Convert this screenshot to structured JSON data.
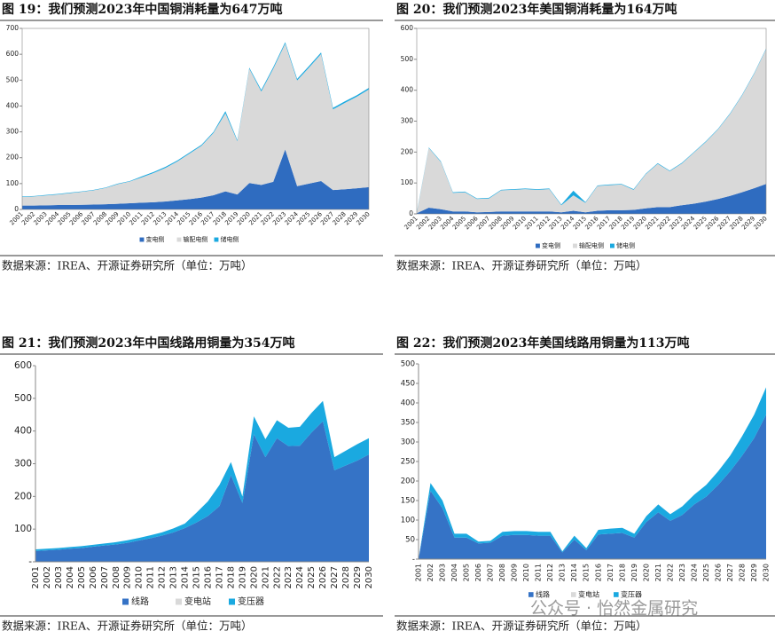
{
  "chart_data": [
    {
      "type": "area",
      "stacked": true,
      "title": "图 19：我们预测2023年中国铜消耗量为647万吨",
      "categories": [
        "2001",
        "2002",
        "2003",
        "2004",
        "2005",
        "2006",
        "2007",
        "2008",
        "2009",
        "2010",
        "2011",
        "2012",
        "2013",
        "2014",
        "2015",
        "2016",
        "2017",
        "2018",
        "2019",
        "2020",
        "2021",
        "2022",
        "2023",
        "2024",
        "2025",
        "2026",
        "2027",
        "2028",
        "2029",
        "2030"
      ],
      "series": [
        {
          "name": "变电侧",
          "color": "#2f6cc0",
          "values": [
            15,
            15,
            16,
            17,
            17,
            18,
            19,
            20,
            22,
            24,
            26,
            28,
            31,
            35,
            40,
            46,
            55,
            70,
            58,
            102,
            95,
            107,
            232,
            90,
            100,
            110,
            75,
            78,
            82,
            86
          ]
        },
        {
          "name": "输配电侧",
          "color": "#d9d9d9",
          "values": [
            33,
            35,
            38,
            41,
            46,
            50,
            55,
            63,
            76,
            84,
            98,
            113,
            130,
            151,
            176,
            200,
            241,
            302,
            206,
            442,
            361,
            437,
            409,
            409,
            449,
            491,
            312,
            334,
            354,
            378
          ]
        },
        {
          "name": "储电侧",
          "color": "#1aa9e0",
          "values": [
            2,
            2,
            2,
            2,
            2,
            2,
            2,
            2,
            2,
            2,
            4,
            4,
            4,
            4,
            4,
            4,
            4,
            8,
            4,
            4,
            6,
            6,
            6,
            6,
            6,
            6,
            6,
            6,
            6,
            6
          ]
        }
      ],
      "ylim": [
        0,
        700
      ],
      "yticks": [
        0,
        100,
        200,
        300,
        400,
        500,
        600,
        700
      ],
      "source": "数据来源：IREA、开源证券研究所（单位：万吨）"
    },
    {
      "type": "area",
      "stacked": true,
      "title": "图 20：我们预测2023年美国铜消耗量为164万吨",
      "categories": [
        "2001",
        "2002",
        "2003",
        "2004",
        "2005",
        "2006",
        "2007",
        "2008",
        "2009",
        "2010",
        "2011",
        "2012",
        "2013",
        "2014",
        "2015",
        "2016",
        "2017",
        "2018",
        "2019",
        "2020",
        "2021",
        "2022",
        "2023",
        "2024",
        "2025",
        "2026",
        "2027",
        "2028",
        "2029",
        "2030"
      ],
      "series": [
        {
          "name": "变电侧",
          "color": "#2f6cc0",
          "values": [
            2,
            20,
            15,
            8,
            8,
            5,
            6,
            8,
            8,
            8,
            8,
            8,
            5,
            10,
            5,
            10,
            12,
            12,
            13,
            18,
            22,
            22,
            28,
            33,
            40,
            48,
            58,
            70,
            83,
            97
          ]
        },
        {
          "name": "输配电侧",
          "color": "#d9d9d9",
          "values": [
            1,
            193,
            153,
            60,
            62,
            43,
            44,
            68,
            70,
            72,
            70,
            72,
            23,
            50,
            31,
            80,
            81,
            83,
            65,
            110,
            140,
            116,
            135,
            165,
            193,
            225,
            265,
            313,
            370,
            436
          ]
        },
        {
          "name": "储电侧",
          "color": "#1aa9e0",
          "values": [
            2,
            2,
            2,
            2,
            2,
            2,
            2,
            2,
            2,
            2,
            2,
            2,
            2,
            15,
            2,
            2,
            2,
            2,
            2,
            2,
            2,
            2,
            2,
            2,
            2,
            2,
            2,
            2,
            2,
            2
          ]
        }
      ],
      "ylim": [
        0,
        600
      ],
      "yticks": [
        0,
        100,
        200,
        300,
        400,
        500,
        600
      ],
      "source": "数据来源：IREA、开源证券研究所（单位：万吨）"
    },
    {
      "type": "area",
      "stacked": true,
      "title": "图 21：我们预测2023年中国线路用铜量为354万吨",
      "categories": [
        "2001",
        "2002",
        "2003",
        "2004",
        "2005",
        "2006",
        "2007",
        "2008",
        "2009",
        "2010",
        "2011",
        "2012",
        "2013",
        "2014",
        "2015",
        "2016",
        "2017",
        "2018",
        "2019",
        "2020",
        "2021",
        "2022",
        "2023",
        "2024",
        "2025",
        "2026",
        "2027",
        "2028",
        "2029",
        "2030"
      ],
      "series": [
        {
          "name": "线路",
          "color": "#3573c6",
          "values": [
            33,
            35,
            37,
            40,
            42,
            46,
            50,
            53,
            58,
            65,
            72,
            80,
            90,
            103,
            120,
            140,
            170,
            265,
            180,
            390,
            320,
            378,
            354,
            355,
            395,
            430,
            280,
            295,
            310,
            328
          ]
        },
        {
          "name": "变电站",
          "color": "#d9d9d9",
          "values": [
            0,
            0,
            0,
            0,
            0,
            0,
            0,
            0,
            0,
            0,
            0,
            0,
            0,
            0,
            0,
            0,
            0,
            0,
            0,
            0,
            0,
            0,
            0,
            0,
            0,
            0,
            0,
            0,
            0,
            0
          ]
        },
        {
          "name": "变压器",
          "color": "#1aa9e0",
          "values": [
            5,
            5,
            5,
            5,
            6,
            6,
            6,
            7,
            8,
            8,
            9,
            10,
            12,
            14,
            30,
            45,
            65,
            40,
            20,
            55,
            55,
            55,
            56,
            58,
            60,
            62,
            40,
            45,
            50,
            50
          ]
        }
      ],
      "ylim": [
        0,
        600
      ],
      "yticks": [
        {
          "value": 0,
          "label": "-"
        },
        100,
        200,
        300,
        400,
        500,
        600
      ],
      "source": "数据来源：IREA、开源证券研究所（单位：万吨）"
    },
    {
      "type": "area",
      "stacked": true,
      "title": "图 22：我们预测2023年美国线路用铜量为113万吨",
      "categories": [
        "2001",
        "2002",
        "2003",
        "2004",
        "2005",
        "2006",
        "2007",
        "2008",
        "2009",
        "2010",
        "2011",
        "2012",
        "2013",
        "2014",
        "2015",
        "2016",
        "2017",
        "2018",
        "2019",
        "2020",
        "2021",
        "2022",
        "2023",
        "2024",
        "2025",
        "2026",
        "2027",
        "2028",
        "2029",
        "2030"
      ],
      "series": [
        {
          "name": "线路",
          "color": "#3573c6",
          "values": [
            0,
            175,
            130,
            55,
            55,
            40,
            42,
            60,
            62,
            62,
            60,
            60,
            17,
            50,
            23,
            63,
            65,
            67,
            55,
            95,
            120,
            98,
            113,
            140,
            160,
            190,
            225,
            265,
            310,
            370
          ]
        },
        {
          "name": "变电站",
          "color": "#d9d9d9",
          "values": [
            0,
            0,
            0,
            0,
            0,
            0,
            0,
            0,
            0,
            0,
            0,
            0,
            0,
            0,
            0,
            0,
            0,
            0,
            0,
            0,
            0,
            0,
            0,
            0,
            0,
            0,
            0,
            0,
            0,
            0
          ]
        },
        {
          "name": "变压器",
          "color": "#1aa9e0",
          "values": [
            0,
            20,
            20,
            10,
            10,
            5,
            5,
            10,
            10,
            10,
            10,
            10,
            3,
            10,
            5,
            12,
            13,
            13,
            10,
            15,
            20,
            17,
            22,
            25,
            30,
            35,
            40,
            50,
            60,
            70
          ]
        }
      ],
      "ylim": [
        0,
        500
      ],
      "yticks": [
        {
          "value": 0,
          "label": "-"
        },
        50,
        100,
        150,
        200,
        250,
        300,
        350,
        400,
        450,
        500
      ],
      "source": "数据来源：IREA、开源证券研究所（单位：万吨）"
    }
  ],
  "watermark": "公众号 · 怡然金属研究"
}
